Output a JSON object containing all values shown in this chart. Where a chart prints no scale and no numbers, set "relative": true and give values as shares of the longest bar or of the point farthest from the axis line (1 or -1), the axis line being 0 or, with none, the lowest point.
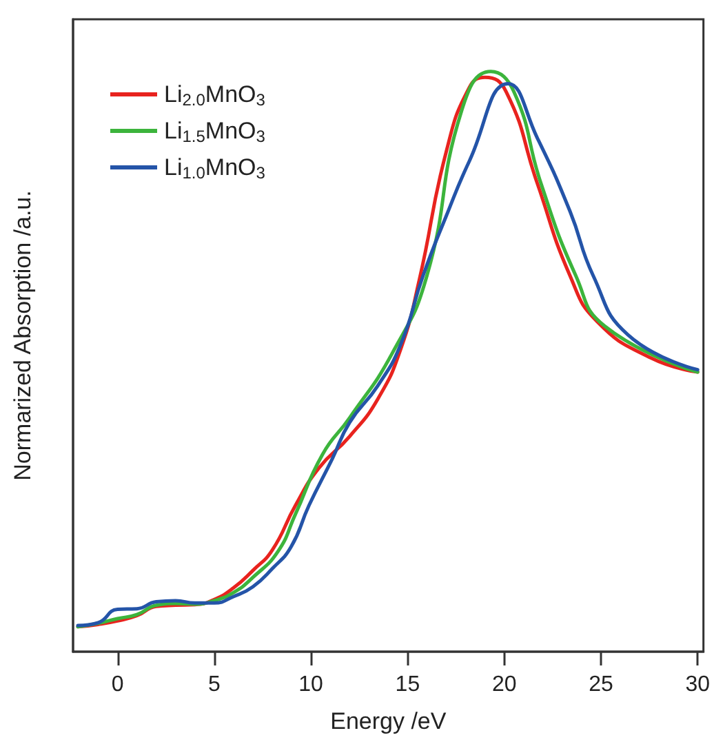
{
  "chart_data": {
    "type": "line",
    "xlabel": "Energy /eV",
    "ylabel": "Normarized Absorption /a.u.",
    "relative": true,
    "xlim": [
      -2.3,
      30.3
    ],
    "xticks": [
      0,
      5,
      10,
      15,
      20,
      25,
      30
    ],
    "legend": "top left",
    "grid": false,
    "marker": "none",
    "line_style": "solid",
    "series": [
      {
        "name": "Li$_{2.0}$MnO$_{3}$",
        "color": "#e8231e",
        "x": [
          -2.05,
          -1,
          0,
          1,
          2,
          3,
          4,
          5,
          6,
          7,
          8,
          9.2,
          10.4,
          12.0,
          13.45,
          14.65,
          15.6,
          17.0,
          18.2,
          19.0,
          20.1,
          21.7,
          23.4,
          24.8,
          27.6,
          30.0
        ],
        "values": [
          0.043,
          0.047,
          0.053,
          0.062,
          0.078,
          0.08,
          0.081,
          0.09,
          0.11,
          0.14,
          0.175,
          0.252,
          0.316,
          0.371,
          0.435,
          0.522,
          0.64,
          0.862,
          0.973,
          0.99,
          0.965,
          0.808,
          0.648,
          0.569,
          0.506,
          0.482
        ]
      },
      {
        "name": "Li$_{1.5}$MnO$_{3}$",
        "color": "#3cb43c",
        "x": [
          -2.05,
          -1,
          0,
          1,
          2,
          3,
          4,
          5,
          6,
          7,
          8.3,
          9.2,
          10.6,
          12.0,
          14.2,
          16.0,
          17.8,
          19.3,
          20.5,
          21.9,
          23.7,
          25.2,
          30.0
        ],
        "values": [
          0.043,
          0.049,
          0.057,
          0.064,
          0.08,
          0.083,
          0.082,
          0.088,
          0.102,
          0.128,
          0.173,
          0.237,
          0.34,
          0.403,
          0.514,
          0.648,
          0.933,
          1,
          0.965,
          0.807,
          0.648,
          0.561,
          0.482
        ]
      },
      {
        "name": "Li$_{1.0}$MnO$_{3}$",
        "color": "#2454a8",
        "x": [
          -2.05,
          -1,
          0,
          1,
          2,
          3,
          4,
          5,
          6,
          7,
          8,
          8.98,
          9.9,
          11.1,
          12.0,
          13.45,
          14.65,
          15.8,
          17.0,
          18.2,
          20.2,
          21.7,
          23.4,
          24.6,
          26.4,
          30.0
        ],
        "values": [
          0.045,
          0.05,
          0.073,
          0.074,
          0.086,
          0.088,
          0.084,
          0.084,
          0.095,
          0.112,
          0.143,
          0.181,
          0.252,
          0.332,
          0.395,
          0.458,
          0.53,
          0.648,
          0.751,
          0.846,
          0.979,
          0.886,
          0.759,
          0.648,
          0.546,
          0.486
        ]
      }
    ]
  }
}
